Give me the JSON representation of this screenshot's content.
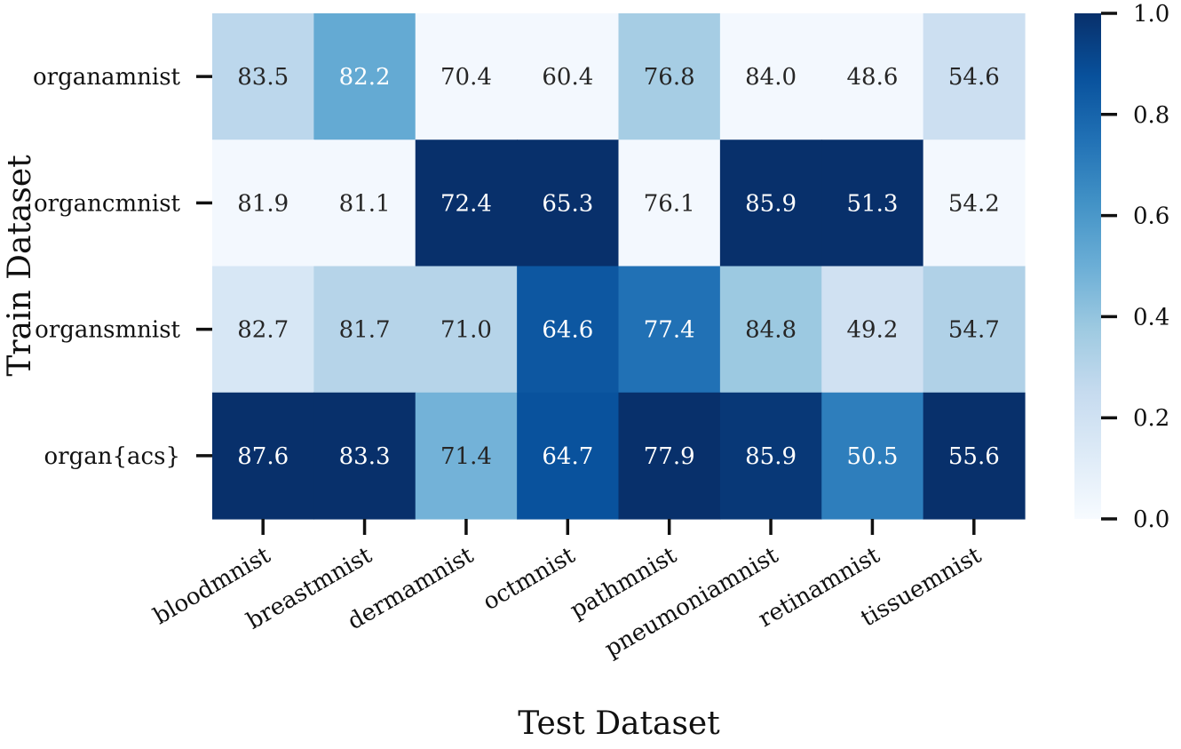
{
  "chart_data": {
    "type": "heatmap",
    "title": "",
    "xlabel": "Test Dataset",
    "ylabel": "Train Dataset",
    "x_categories": [
      "bloodmnist",
      "breastmnist",
      "dermamnist",
      "octmnist",
      "pathmnist",
      "pneumoniamnist",
      "retinamnist",
      "tissuemnist"
    ],
    "y_categories": [
      "organamnist",
      "organcmnist",
      "organsmnist",
      "organ{acs}"
    ],
    "annotations": [
      [
        83.5,
        82.2,
        70.4,
        60.4,
        76.8,
        84.0,
        48.6,
        54.6
      ],
      [
        81.9,
        81.1,
        72.4,
        65.3,
        76.1,
        85.9,
        51.3,
        54.2
      ],
      [
        82.7,
        81.7,
        71.0,
        64.6,
        77.4,
        84.8,
        49.2,
        54.7
      ],
      [
        87.6,
        83.3,
        71.4,
        64.7,
        77.9,
        85.9,
        50.5,
        55.6
      ]
    ],
    "color_values": [
      [
        0.28,
        0.52,
        0.02,
        0.02,
        0.35,
        0.02,
        0.02,
        0.22
      ],
      [
        0.02,
        0.02,
        1.0,
        1.0,
        0.02,
        1.0,
        1.0,
        0.02
      ],
      [
        0.16,
        0.3,
        0.3,
        0.85,
        0.75,
        0.38,
        0.2,
        0.32
      ],
      [
        1.0,
        1.0,
        0.48,
        0.87,
        1.0,
        0.97,
        0.7,
        1.0
      ]
    ],
    "colorbar": {
      "colormap": "Blues",
      "range": [
        0.0,
        1.0
      ],
      "ticks": [
        "0.0",
        "0.2",
        "0.4",
        "0.6",
        "0.8",
        "1.0"
      ]
    }
  }
}
